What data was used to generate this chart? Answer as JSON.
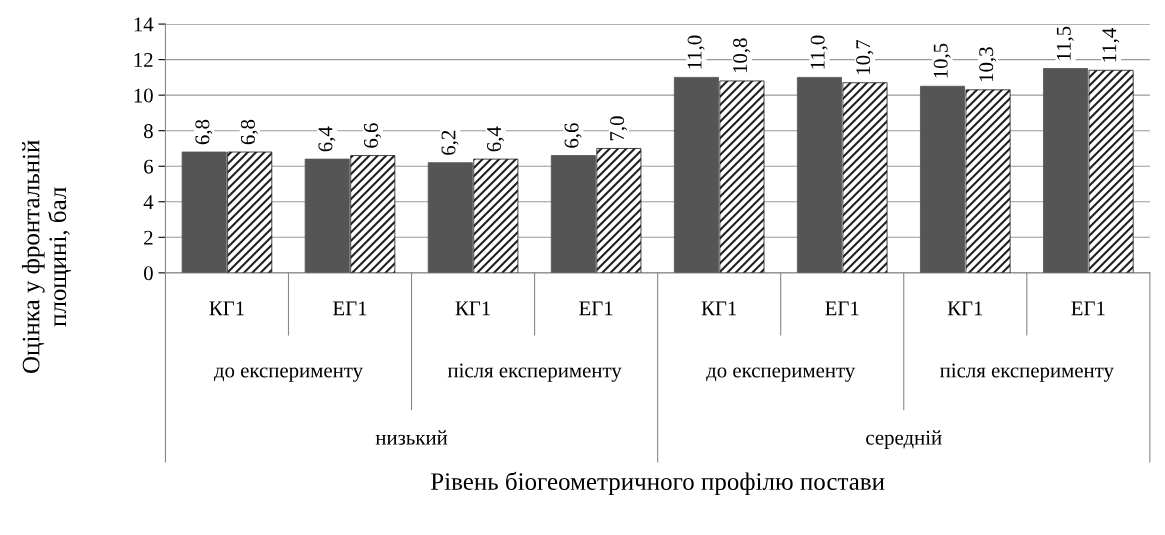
{
  "chart_data": {
    "type": "bar",
    "ylabel": "Оцінка у фронтальній площині, бал",
    "categories": [
      "КГ1",
      "ЕГ1",
      "КГ1",
      "ЕГ1",
      "КГ1",
      "ЕГ1",
      "КГ1",
      "ЕГ1"
    ],
    "annotations": [
      "до експерименту",
      "після експерименту",
      "до експерименту",
      "після експерименту",
      "низький",
      "середній",
      "Рівень біогеометричного профілю постави"
    ],
    "series": [
      {
        "color": "#555555",
        "values": [
          6.8,
          6.4,
          6.2,
          6.6,
          11.0,
          11.0,
          10.5,
          11.5
        ],
        "value_labels": [
          "6,8",
          "6,4",
          "6,2",
          "6,6",
          "11,0",
          "11,0",
          "10,5",
          "11,5"
        ]
      },
      {
        "color": "#222222",
        "values": [
          6.8,
          6.6,
          6.4,
          7.0,
          10.8,
          10.7,
          10.3,
          11.4
        ],
        "value_labels": [
          "6,8",
          "6,6",
          "6,4",
          "7,0",
          "10,8",
          "10,7",
          "10,3",
          "11,4"
        ]
      }
    ],
    "ylim": [
      0,
      14
    ],
    "yticks": [
      0,
      2,
      4,
      6,
      8,
      10,
      12,
      14
    ],
    "grid": "y",
    "legend": false
  }
}
